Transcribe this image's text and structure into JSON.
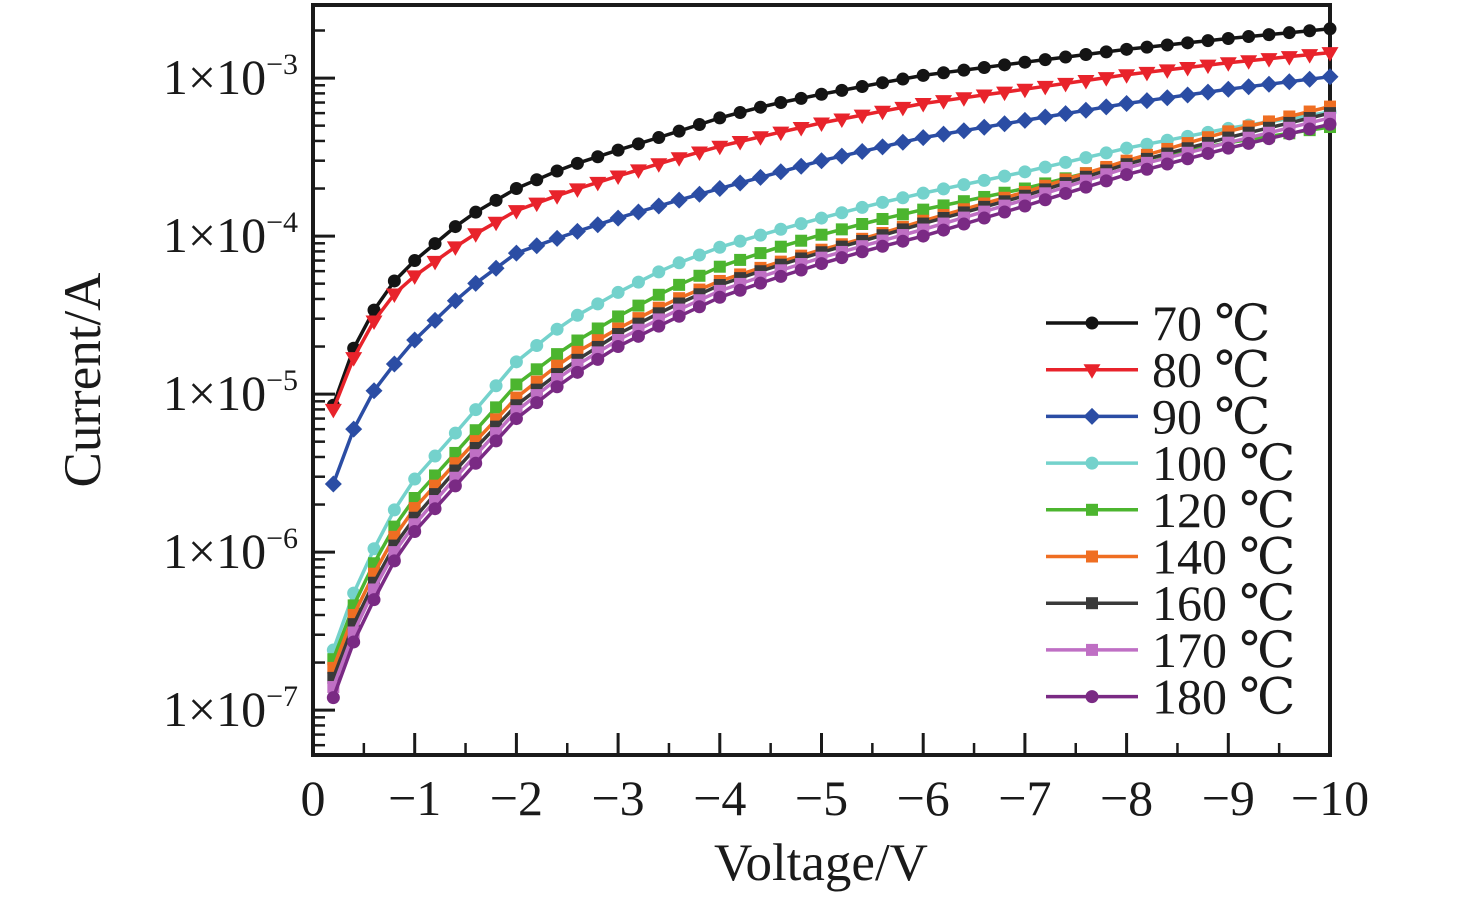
{
  "figure": {
    "background": "#ffffff",
    "frame_color": "#1a1a1a",
    "text_color": "#1a1a1a"
  },
  "chart_data": {
    "type": "line",
    "title": "",
    "xlabel": "Voltage/V",
    "ylabel": "Current/A",
    "x_axis": {
      "lim": [
        0,
        -10
      ],
      "major_ticks": [
        0,
        -1,
        -2,
        -3,
        -4,
        -5,
        -6,
        -7,
        -8,
        -9,
        -10
      ],
      "tick_labels": [
        "0",
        "−1",
        "−2",
        "−3",
        "−4",
        "−5",
        "−6",
        "−7",
        "−8",
        "−9",
        "−10"
      ],
      "minor_step": 0.5
    },
    "y_axis": {
      "scale": "log",
      "lim": [
        5.2e-08,
        0.0029
      ],
      "major_tick_exponents": [
        -3,
        -4,
        -5,
        -6,
        -7
      ],
      "tick_labels": [
        {
          "mantissa": "1×10",
          "exponent": "−3"
        },
        {
          "mantissa": "1×10",
          "exponent": "−4"
        },
        {
          "mantissa": "1×10",
          "exponent": "−5"
        },
        {
          "mantissa": "1×10",
          "exponent": "−6"
        },
        {
          "mantissa": "1×10",
          "exponent": "−7"
        }
      ]
    },
    "legend": {
      "border": false,
      "position": "right-middle"
    },
    "marker_step_v": 0.2,
    "anchor_voltages": [
      -0.2,
      -0.4,
      -0.6,
      -0.8,
      -1,
      -1.5,
      -2,
      -2.5,
      -3,
      -3.5,
      -4,
      -4.5,
      -5,
      -5.5,
      -6,
      -7,
      -8,
      -9,
      -10
    ],
    "series": [
      {
        "name": "70 ℃",
        "color": "#141414",
        "marker": "circle",
        "currents": [
          8.5e-06,
          1.95e-05,
          3.4e-05,
          5.2e-05,
          7e-05,
          0.00013,
          0.0002,
          0.000275,
          0.00035,
          0.00044,
          0.00056,
          0.00068,
          0.00079,
          0.00091,
          0.00104,
          0.00126,
          0.00152,
          0.00178,
          0.00205
        ]
      },
      {
        "name": "80 ℃",
        "color": "#e8232b",
        "marker": "triangle-down",
        "currents": [
          8e-06,
          1.7e-05,
          2.9e-05,
          4.3e-05,
          5.6e-05,
          9.5e-05,
          0.000145,
          0.00019,
          0.00024,
          0.0003,
          0.00037,
          0.00044,
          0.00052,
          0.0006,
          0.00069,
          0.00085,
          0.00105,
          0.00125,
          0.00145
        ]
      },
      {
        "name": "90 ℃",
        "color": "#2b4da4",
        "marker": "diamond",
        "currents": [
          2.7e-06,
          6e-06,
          1.05e-05,
          1.55e-05,
          2.2e-05,
          4.5e-05,
          7.8e-05,
          0.000102,
          0.00013,
          0.000162,
          0.0002,
          0.000245,
          0.0003,
          0.000355,
          0.00042,
          0.00054,
          0.00069,
          0.00085,
          0.00102
        ]
      },
      {
        "name": "100 ℃",
        "color": "#74d2cc",
        "marker": "circle",
        "currents": [
          2.4e-07,
          5.5e-07,
          1.05e-06,
          1.85e-06,
          2.9e-06,
          6.7e-06,
          1.6e-05,
          2.9e-05,
          4.4e-05,
          6.4e-05,
          8.5e-05,
          0.000106,
          0.00013,
          0.000158,
          0.000187,
          0.000255,
          0.00036,
          0.00048,
          0.00061
        ]
      },
      {
        "name": "120 ℃",
        "color": "#4cb52f",
        "marker": "square",
        "currents": [
          2.1e-07,
          4.6e-07,
          8.5e-07,
          1.45e-06,
          2.2e-06,
          5e-06,
          1.15e-05,
          2e-05,
          3.1e-05,
          4.6e-05,
          6.4e-05,
          8.2e-05,
          0.000102,
          0.000124,
          0.000147,
          0.0002,
          0.00029,
          0.00039,
          0.00049
        ]
      },
      {
        "name": "140 ℃",
        "color": "#ef6e22",
        "marker": "square",
        "currents": [
          1.85e-07,
          4e-07,
          7.3e-07,
          1.25e-06,
          1.9e-06,
          4.3e-06,
          9.5e-06,
          1.7e-05,
          2.6e-05,
          3.8e-05,
          5.2e-05,
          6.6e-05,
          8.2e-05,
          0.0001,
          0.000125,
          0.00019,
          0.0003,
          0.00046,
          0.00066
        ]
      },
      {
        "name": "160 ℃",
        "color": "#3a3a3a",
        "marker": "square",
        "currents": [
          1.6e-07,
          3.5e-07,
          6.4e-07,
          1.1e-06,
          1.65e-06,
          3.9e-06,
          8.5e-06,
          1.5e-05,
          2.4e-05,
          3.5e-05,
          4.9e-05,
          6.3e-05,
          7.9e-05,
          9.7e-05,
          0.00012,
          0.00018,
          0.000285,
          0.00042,
          0.0006
        ]
      },
      {
        "name": "170 ℃",
        "color": "#bf6fc4",
        "marker": "square",
        "currents": [
          1.4e-07,
          3.1e-07,
          5.8e-07,
          1e-06,
          1.5e-06,
          3.5e-06,
          7.8e-06,
          1.4e-05,
          2.2e-05,
          3.2e-05,
          4.5e-05,
          5.8e-05,
          7.3e-05,
          9e-05,
          0.00011,
          0.00017,
          0.00027,
          0.00039,
          0.00056
        ]
      },
      {
        "name": "180 ℃",
        "color": "#7a2a84",
        "marker": "circle",
        "currents": [
          1.2e-07,
          2.7e-07,
          5e-07,
          8.8e-07,
          1.35e-06,
          3.1e-06,
          7e-06,
          1.25e-05,
          2e-05,
          2.9e-05,
          4.1e-05,
          5.3e-05,
          6.7e-05,
          8.3e-05,
          0.0001,
          0.000155,
          0.000245,
          0.00036,
          0.00051
        ]
      }
    ]
  }
}
